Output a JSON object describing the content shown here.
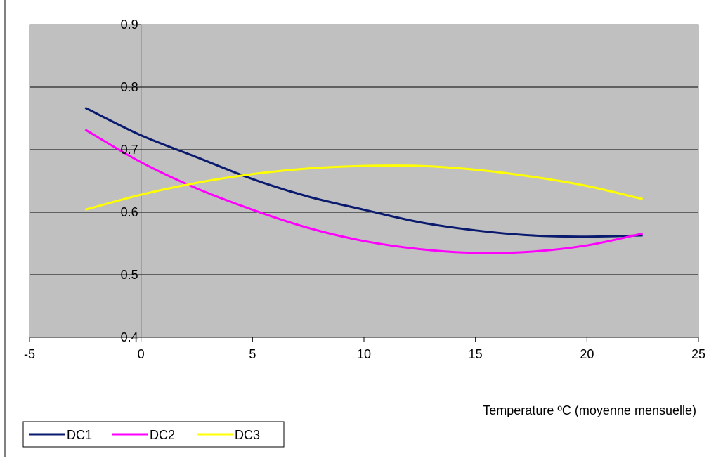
{
  "chart_data": {
    "type": "line",
    "title": "",
    "xlabel": "Temperature ºC (moyenne mensuelle)",
    "ylabel": "",
    "xlim": [
      -5,
      25
    ],
    "ylim": [
      0.4,
      0.9
    ],
    "x_ticks": [
      "-5",
      "0",
      "5",
      "10",
      "15",
      "20",
      "25"
    ],
    "y_ticks": [
      "0.4",
      "0.5",
      "0.6",
      "0.7",
      "0.8",
      "0.9"
    ],
    "grid": "horizontal",
    "plot_background": "#c0c0c0",
    "legend_position": "bottom-left",
    "x": [
      -2.5,
      0,
      2.5,
      5,
      7.5,
      10,
      12.5,
      15,
      17.5,
      20,
      22.5
    ],
    "series": [
      {
        "name": "DC1",
        "color": "#0a1a6e",
        "values": [
          0.767,
          0.723,
          0.688,
          0.653,
          0.625,
          0.604,
          0.584,
          0.571,
          0.563,
          0.561,
          0.563
        ]
      },
      {
        "name": "DC2",
        "color": "#ff00ff",
        "values": [
          0.732,
          0.68,
          0.638,
          0.604,
          0.575,
          0.554,
          0.541,
          0.535,
          0.537,
          0.547,
          0.566
        ]
      },
      {
        "name": "DC3",
        "color": "#ffff00",
        "values": [
          0.604,
          0.628,
          0.647,
          0.661,
          0.67,
          0.674,
          0.674,
          0.668,
          0.657,
          0.642,
          0.621
        ]
      }
    ]
  }
}
